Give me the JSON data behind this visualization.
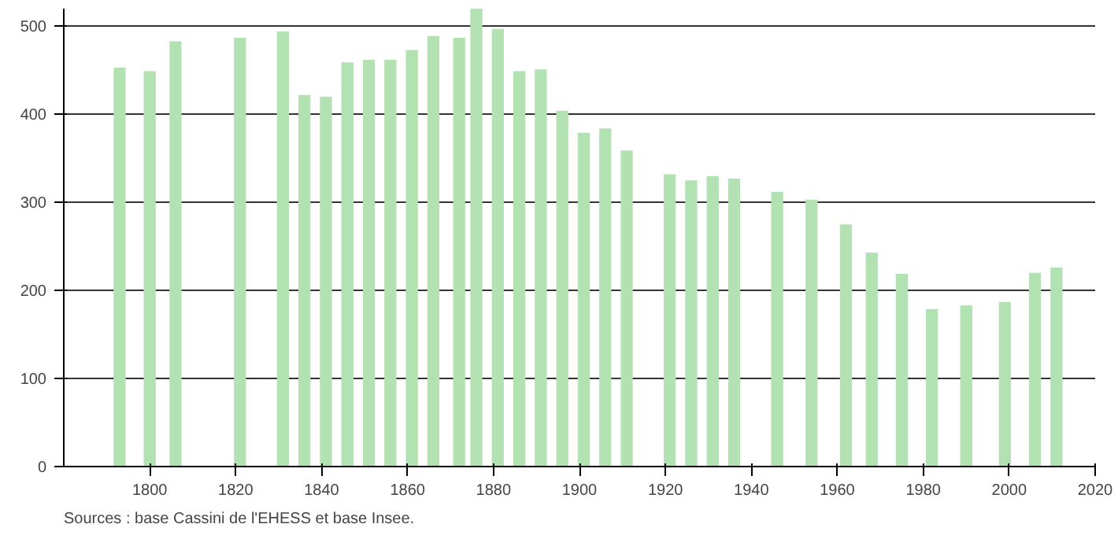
{
  "chart_data": {
    "type": "bar",
    "x": [
      1793,
      1800,
      1806,
      1821,
      1831,
      1836,
      1841,
      1846,
      1851,
      1856,
      1861,
      1866,
      1872,
      1876,
      1881,
      1886,
      1891,
      1896,
      1901,
      1906,
      1911,
      1921,
      1926,
      1931,
      1936,
      1946,
      1954,
      1962,
      1968,
      1975,
      1982,
      1990,
      1999,
      2006,
      2011
    ],
    "values": [
      453,
      449,
      483,
      487,
      494,
      422,
      420,
      459,
      462,
      462,
      473,
      489,
      487,
      520,
      497,
      449,
      451,
      404,
      379,
      384,
      359,
      332,
      325,
      330,
      327,
      312,
      303,
      275,
      243,
      219,
      179,
      183,
      187,
      220,
      226
    ],
    "color": "#b2e2b2",
    "xlim": [
      1780,
      2020
    ],
    "xticks": [
      1800,
      1820,
      1840,
      1860,
      1880,
      1900,
      1920,
      1940,
      1960,
      1980,
      2000,
      2020
    ],
    "ylim": [
      0,
      520
    ],
    "yticks": [
      0,
      100,
      200,
      300,
      400,
      500
    ],
    "grid": "y",
    "annotations": [
      "Sources : base Cassini de l'EHESS et base Insee."
    ]
  }
}
